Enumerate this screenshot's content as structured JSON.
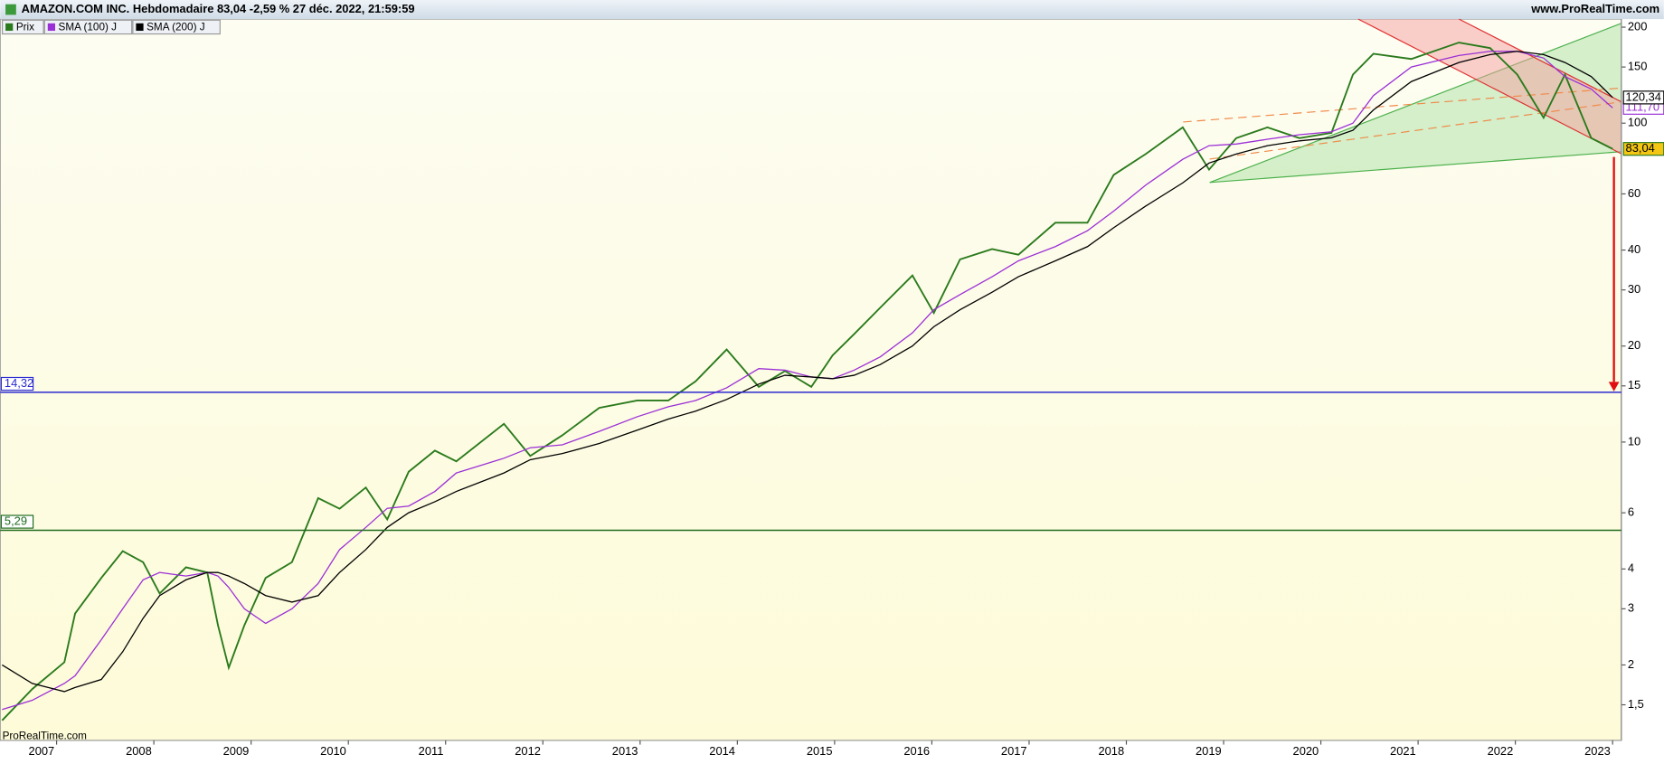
{
  "header": {
    "title": "AMAZON.COM INC. Hebdomadaire 83,04 -2,59 % 27 déc. 2022, 21:59:59",
    "site": "www.ProRealTime.com",
    "watermark": "ProRealTime.com"
  },
  "chart_data": {
    "type": "line",
    "log_scale": true,
    "x": [
      2006.44,
      2006.75,
      2007.08,
      2007.19,
      2007.46,
      2007.68,
      2007.89,
      2008.06,
      2008.33,
      2008.55,
      2008.66,
      2008.77,
      2008.93,
      2009.15,
      2009.42,
      2009.69,
      2009.91,
      2010.18,
      2010.4,
      2010.62,
      2010.89,
      2011.11,
      2011.6,
      2011.87,
      2012.2,
      2012.58,
      2012.97,
      2013.29,
      2013.57,
      2013.89,
      2014.22,
      2014.49,
      2014.76,
      2014.98,
      2015.2,
      2015.47,
      2015.8,
      2016.02,
      2016.29,
      2016.62,
      2016.89,
      2017.27,
      2017.6,
      2017.87,
      2018.2,
      2018.58,
      2018.85,
      2019.13,
      2019.45,
      2019.78,
      2020.11,
      2020.33,
      2020.54,
      2020.93,
      2021.42,
      2021.74,
      2022.02,
      2022.29,
      2022.51,
      2022.78,
      2023.0
    ],
    "series": [
      {
        "name": "Prix",
        "color": "#2a7a1c",
        "end_label": "83,04",
        "label_fill": "#f3c613",
        "values": [
          1.34,
          1.68,
          2.04,
          2.9,
          3.75,
          4.55,
          4.2,
          3.35,
          4.05,
          3.9,
          2.66,
          1.96,
          2.66,
          3.75,
          4.2,
          6.67,
          6.18,
          7.2,
          5.72,
          8.07,
          9.4,
          8.7,
          11.4,
          9.05,
          10.5,
          12.8,
          13.5,
          13.5,
          15.5,
          19.5,
          14.9,
          16.7,
          14.9,
          18.7,
          21.8,
          26.4,
          33.3,
          25.4,
          37.4,
          40.3,
          38.7,
          48.7,
          48.7,
          68.8,
          80.1,
          97,
          71.5,
          89.8,
          97,
          89.8,
          93.3,
          142,
          165,
          159,
          179,
          172,
          142,
          104,
          142,
          89.8,
          83.04
        ]
      },
      {
        "name": "SMA (100) J",
        "color": "#9b2fd6",
        "end_label": "111,70",
        "label_fill": "#ffffff",
        "values": [
          1.45,
          1.55,
          1.75,
          1.85,
          2.4,
          3.0,
          3.7,
          3.9,
          3.8,
          3.9,
          3.8,
          3.5,
          3.0,
          2.7,
          3.0,
          3.6,
          4.6,
          5.4,
          6.2,
          6.3,
          7.0,
          8.0,
          8.9,
          9.6,
          9.8,
          10.8,
          12.0,
          12.9,
          13.5,
          14.8,
          17.0,
          16.8,
          16.0,
          15.8,
          16.8,
          18.5,
          22,
          26,
          29,
          33,
          37,
          41,
          46,
          53,
          64,
          77,
          85,
          86,
          89,
          92,
          94,
          100,
          122,
          150,
          163,
          168,
          168,
          160,
          140,
          128,
          111.7
        ]
      },
      {
        "name": "SMA (200) J",
        "color": "#000000",
        "end_label": "120,34",
        "label_fill": "#ffffff",
        "values": [
          2.0,
          1.75,
          1.65,
          1.7,
          1.8,
          2.2,
          2.8,
          3.3,
          3.7,
          3.9,
          3.9,
          3.8,
          3.6,
          3.3,
          3.15,
          3.3,
          3.9,
          4.6,
          5.4,
          6.0,
          6.5,
          7.0,
          8.0,
          8.8,
          9.2,
          9.9,
          10.9,
          11.8,
          12.5,
          13.6,
          15.2,
          16.2,
          16.0,
          15.8,
          16.2,
          17.5,
          20,
          23,
          26,
          29.5,
          33,
          37,
          41,
          47,
          55,
          65,
          75,
          80,
          85,
          88,
          90,
          95,
          110,
          135,
          155,
          164,
          168,
          164,
          155,
          140,
          120.34
        ]
      }
    ],
    "levels": [
      {
        "value": 14.32,
        "label": "14,32",
        "color": "#2b2bd0"
      },
      {
        "value": 5.29,
        "label": "5,29",
        "color": "#1e6b1e"
      }
    ],
    "xlim": [
      2006.42,
      2023.09
    ],
    "xticks": [
      2007,
      2008,
      2009,
      2010,
      2011,
      2012,
      2013,
      2014,
      2015,
      2016,
      2017,
      2018,
      2019,
      2020,
      2021,
      2022,
      2023
    ],
    "ylim": [
      1.16,
      212
    ],
    "yticks": [
      {
        "value": 1.5,
        "label": "1,5"
      },
      2,
      3,
      4,
      6,
      10,
      15,
      20,
      30,
      40,
      60,
      100,
      150,
      200
    ]
  }
}
